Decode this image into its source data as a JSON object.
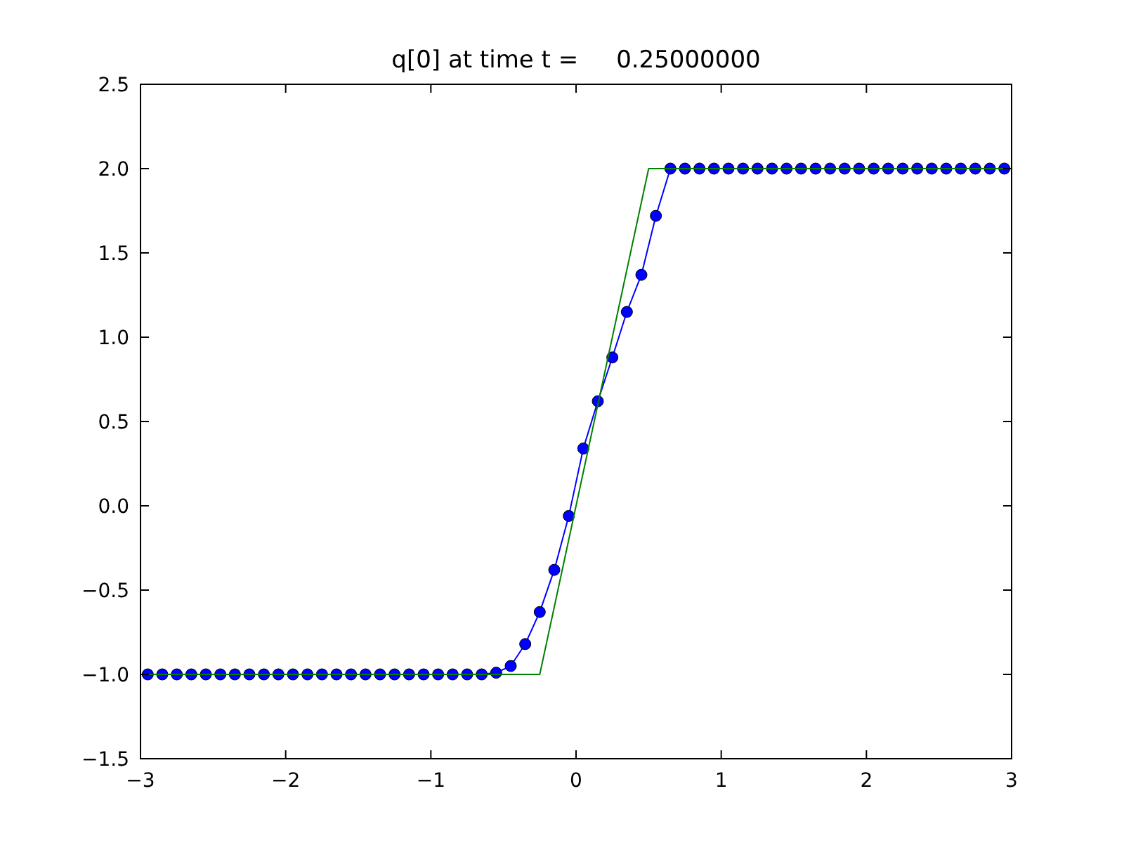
{
  "chart_data": {
    "type": "line",
    "title": "q[0] at time t =     0.25000000",
    "xlim": [
      -3,
      3
    ],
    "xticks": [
      {
        "value": -3,
        "label": "−3"
      },
      {
        "value": -2,
        "label": "−2"
      },
      {
        "value": -1,
        "label": "−1"
      },
      0,
      1,
      2,
      3
    ],
    "ylim": [
      -1.5,
      2.5
    ],
    "yticks": [
      {
        "value": -1.5,
        "label": "−1.5"
      },
      {
        "value": -1,
        "label": "−1.0"
      },
      {
        "value": -0.5,
        "label": "−0.5"
      },
      {
        "value": 0,
        "label": "0.0"
      },
      {
        "value": 0.5,
        "label": "0.5"
      },
      {
        "value": 1,
        "label": "1.0"
      },
      {
        "value": 1.5,
        "label": "1.5"
      },
      {
        "value": 2,
        "label": "2.0"
      },
      {
        "value": 2.5,
        "label": "2.5"
      }
    ],
    "series": [
      {
        "color": "#0000ff",
        "marker": "circle",
        "x": [
          -2.95,
          -2.85,
          -2.75,
          -2.65,
          -2.55,
          -2.45,
          -2.35,
          -2.25,
          -2.15,
          -2.05,
          -1.95,
          -1.85,
          -1.75,
          -1.65,
          -1.55,
          -1.45,
          -1.35,
          -1.25,
          -1.15,
          -1.05,
          -0.95,
          -0.85,
          -0.75,
          -0.65,
          -0.55,
          -0.45,
          -0.35,
          -0.25,
          -0.15,
          -0.05,
          0.05,
          0.15,
          0.25,
          0.35,
          0.45,
          0.55,
          0.65,
          0.75,
          0.85,
          0.95,
          1.05,
          1.15,
          1.25,
          1.35,
          1.45,
          1.55,
          1.65,
          1.75,
          1.85,
          1.95,
          2.05,
          2.15,
          2.25,
          2.35,
          2.45,
          2.55,
          2.65,
          2.75,
          2.85,
          2.95
        ],
        "values": [
          -1,
          -1,
          -1,
          -1,
          -1,
          -1,
          -1,
          -1,
          -1,
          -1,
          -1,
          -1,
          -1,
          -1,
          -1,
          -1,
          -1,
          -1,
          -1,
          -1,
          -1,
          -1,
          -1,
          -1,
          -0.99,
          -0.95,
          -0.82,
          -0.63,
          -0.38,
          -0.06,
          0.34,
          0.62,
          0.88,
          1.15,
          1.37,
          1.72,
          2,
          2,
          2,
          2,
          2,
          2,
          2,
          2,
          2,
          2,
          2,
          2,
          2,
          2,
          2,
          2,
          2,
          2,
          2,
          2,
          2,
          2,
          2,
          2
        ]
      },
      {
        "color": "#008000",
        "marker": "none",
        "x": [
          -3,
          -0.25,
          0.5,
          3
        ],
        "values": [
          -1,
          -1,
          2,
          2
        ]
      }
    ]
  }
}
